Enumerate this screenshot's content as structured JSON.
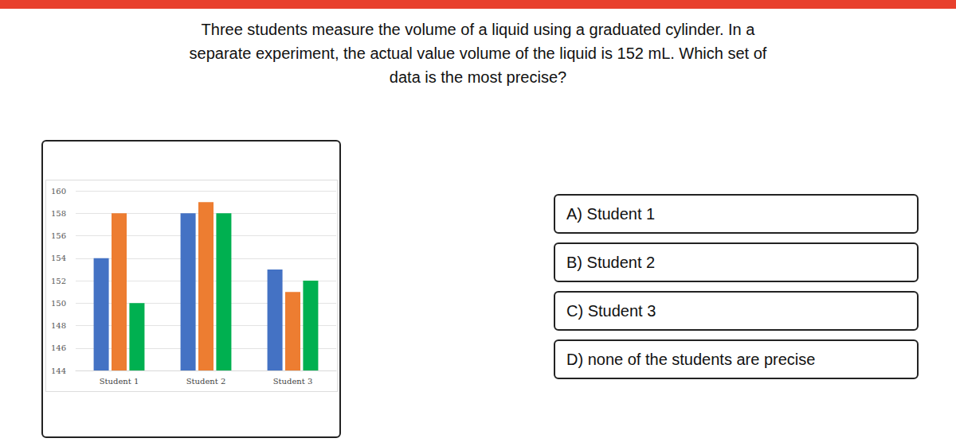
{
  "question_lines": [
    "Three students measure the volume of a liquid using a graduated cylinder. In a",
    "separate experiment, the actual value volume of the liquid is 152 mL. Which set of",
    "data is the most precise?"
  ],
  "options": [
    "A) Student 1",
    "B) Student 2",
    "C) Student 3",
    "D) none of the students are precise"
  ],
  "chart_data": {
    "type": "bar",
    "categories": [
      "Student 1",
      "Student 2",
      "Student 3"
    ],
    "series": [
      {
        "color": "#4472c4",
        "values": [
          154,
          158,
          153
        ]
      },
      {
        "color": "#ed7d31",
        "values": [
          158,
          159,
          151
        ]
      },
      {
        "color": "#00b050",
        "values": [
          150,
          158,
          152
        ]
      }
    ],
    "ylim": [
      144,
      160
    ],
    "yticks": [
      144,
      146,
      148,
      150,
      152,
      154,
      156,
      158,
      160
    ],
    "grid": true
  }
}
